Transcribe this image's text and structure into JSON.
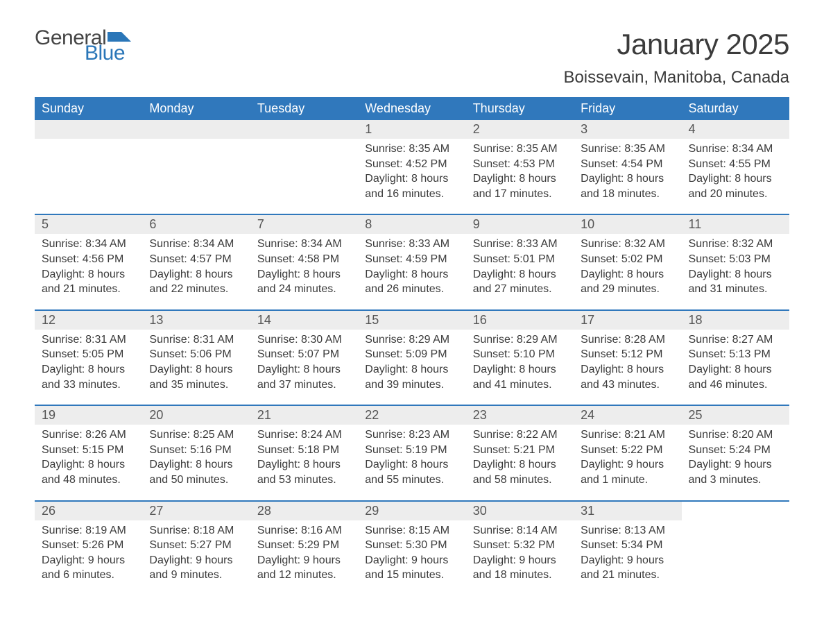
{
  "logo": {
    "general": "General",
    "blue": "Blue",
    "flag_color": "#2a76b8"
  },
  "title": "January 2025",
  "location": "Boissevain, Manitoba, Canada",
  "colors": {
    "header_bg": "#3078bc",
    "header_text": "#ffffff",
    "daynum_bg": "#ededed",
    "daynum_text": "#555555",
    "body_text": "#3b3b3b",
    "rule": "#3078bc",
    "page_bg": "#ffffff",
    "logo_general": "#454545",
    "logo_blue": "#2a76b8"
  },
  "typography": {
    "title_fontsize": 42,
    "location_fontsize": 24,
    "dayhead_fontsize": 18,
    "daynum_fontsize": 18,
    "cell_fontsize": 16,
    "logo_fontsize": 30
  },
  "layout": {
    "columns": 7,
    "rows": 5,
    "first_day_column_index": 3
  },
  "day_headers": [
    "Sunday",
    "Monday",
    "Tuesday",
    "Wednesday",
    "Thursday",
    "Friday",
    "Saturday"
  ],
  "weeks": [
    [
      null,
      null,
      null,
      {
        "num": "1",
        "sunrise": "8:35 AM",
        "sunset": "4:52 PM",
        "daylight": "8 hours and 16 minutes."
      },
      {
        "num": "2",
        "sunrise": "8:35 AM",
        "sunset": "4:53 PM",
        "daylight": "8 hours and 17 minutes."
      },
      {
        "num": "3",
        "sunrise": "8:35 AM",
        "sunset": "4:54 PM",
        "daylight": "8 hours and 18 minutes."
      },
      {
        "num": "4",
        "sunrise": "8:34 AM",
        "sunset": "4:55 PM",
        "daylight": "8 hours and 20 minutes."
      }
    ],
    [
      {
        "num": "5",
        "sunrise": "8:34 AM",
        "sunset": "4:56 PM",
        "daylight": "8 hours and 21 minutes."
      },
      {
        "num": "6",
        "sunrise": "8:34 AM",
        "sunset": "4:57 PM",
        "daylight": "8 hours and 22 minutes."
      },
      {
        "num": "7",
        "sunrise": "8:34 AM",
        "sunset": "4:58 PM",
        "daylight": "8 hours and 24 minutes."
      },
      {
        "num": "8",
        "sunrise": "8:33 AM",
        "sunset": "4:59 PM",
        "daylight": "8 hours and 26 minutes."
      },
      {
        "num": "9",
        "sunrise": "8:33 AM",
        "sunset": "5:01 PM",
        "daylight": "8 hours and 27 minutes."
      },
      {
        "num": "10",
        "sunrise": "8:32 AM",
        "sunset": "5:02 PM",
        "daylight": "8 hours and 29 minutes."
      },
      {
        "num": "11",
        "sunrise": "8:32 AM",
        "sunset": "5:03 PM",
        "daylight": "8 hours and 31 minutes."
      }
    ],
    [
      {
        "num": "12",
        "sunrise": "8:31 AM",
        "sunset": "5:05 PM",
        "daylight": "8 hours and 33 minutes."
      },
      {
        "num": "13",
        "sunrise": "8:31 AM",
        "sunset": "5:06 PM",
        "daylight": "8 hours and 35 minutes."
      },
      {
        "num": "14",
        "sunrise": "8:30 AM",
        "sunset": "5:07 PM",
        "daylight": "8 hours and 37 minutes."
      },
      {
        "num": "15",
        "sunrise": "8:29 AM",
        "sunset": "5:09 PM",
        "daylight": "8 hours and 39 minutes."
      },
      {
        "num": "16",
        "sunrise": "8:29 AM",
        "sunset": "5:10 PM",
        "daylight": "8 hours and 41 minutes."
      },
      {
        "num": "17",
        "sunrise": "8:28 AM",
        "sunset": "5:12 PM",
        "daylight": "8 hours and 43 minutes."
      },
      {
        "num": "18",
        "sunrise": "8:27 AM",
        "sunset": "5:13 PM",
        "daylight": "8 hours and 46 minutes."
      }
    ],
    [
      {
        "num": "19",
        "sunrise": "8:26 AM",
        "sunset": "5:15 PM",
        "daylight": "8 hours and 48 minutes."
      },
      {
        "num": "20",
        "sunrise": "8:25 AM",
        "sunset": "5:16 PM",
        "daylight": "8 hours and 50 minutes."
      },
      {
        "num": "21",
        "sunrise": "8:24 AM",
        "sunset": "5:18 PM",
        "daylight": "8 hours and 53 minutes."
      },
      {
        "num": "22",
        "sunrise": "8:23 AM",
        "sunset": "5:19 PM",
        "daylight": "8 hours and 55 minutes."
      },
      {
        "num": "23",
        "sunrise": "8:22 AM",
        "sunset": "5:21 PM",
        "daylight": "8 hours and 58 minutes."
      },
      {
        "num": "24",
        "sunrise": "8:21 AM",
        "sunset": "5:22 PM",
        "daylight": "9 hours and 1 minute."
      },
      {
        "num": "25",
        "sunrise": "8:20 AM",
        "sunset": "5:24 PM",
        "daylight": "9 hours and 3 minutes."
      }
    ],
    [
      {
        "num": "26",
        "sunrise": "8:19 AM",
        "sunset": "5:26 PM",
        "daylight": "9 hours and 6 minutes."
      },
      {
        "num": "27",
        "sunrise": "8:18 AM",
        "sunset": "5:27 PM",
        "daylight": "9 hours and 9 minutes."
      },
      {
        "num": "28",
        "sunrise": "8:16 AM",
        "sunset": "5:29 PM",
        "daylight": "9 hours and 12 minutes."
      },
      {
        "num": "29",
        "sunrise": "8:15 AM",
        "sunset": "5:30 PM",
        "daylight": "9 hours and 15 minutes."
      },
      {
        "num": "30",
        "sunrise": "8:14 AM",
        "sunset": "5:32 PM",
        "daylight": "9 hours and 18 minutes."
      },
      {
        "num": "31",
        "sunrise": "8:13 AM",
        "sunset": "5:34 PM",
        "daylight": "9 hours and 21 minutes."
      },
      null
    ]
  ],
  "labels": {
    "sunrise": "Sunrise: ",
    "sunset": "Sunset: ",
    "daylight": "Daylight: "
  }
}
